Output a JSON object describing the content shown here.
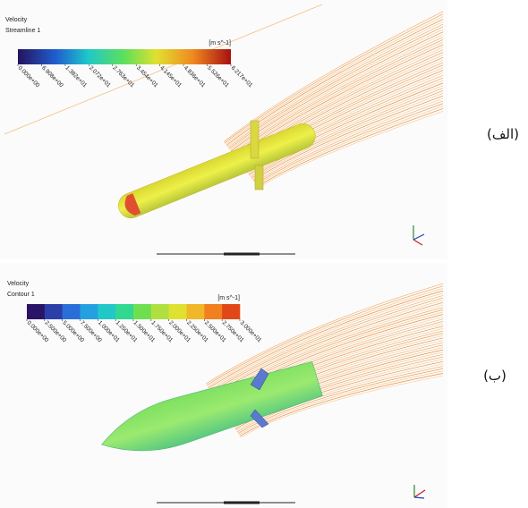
{
  "panels": [
    {
      "title": "Velocity",
      "subtitle": "Streamline 1",
      "unit": "[m s^-1]",
      "ticks": [
        "0.000e+00",
        "6.908e+00",
        "1.382e+01",
        "2.072e+01",
        "2.763e+01",
        "3.454e+01",
        "4.145e+01",
        "4.836e+01",
        "5.526e+01",
        "6.217e+01"
      ],
      "label": "(الف)"
    },
    {
      "title": "Velocity",
      "subtitle": "Contour 1",
      "unit": "[m s^-1]",
      "ticks": [
        "0.000e+00",
        "2.500e+00",
        "5.000e+00",
        "7.500e+00",
        "1.000e+01",
        "1.250e+01",
        "1.500e+01",
        "1.750e+01",
        "2.000e+01",
        "2.250e+01",
        "2.500e+01",
        "2.750e+01",
        "3.000e+01"
      ],
      "label": "(ب)"
    }
  ]
}
